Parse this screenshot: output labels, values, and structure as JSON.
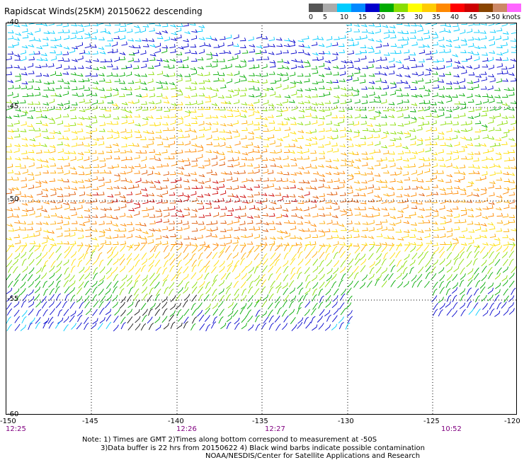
{
  "title": "Rapidscat Winds(25KM) 20150622 descending",
  "legend": {
    "colors": [
      "#555555",
      "#aaaaaa",
      "#00ccff",
      "#0088ff",
      "#0000cc",
      "#00aa00",
      "#88dd00",
      "#ffff00",
      "#ffcc00",
      "#ff8800",
      "#ff0000",
      "#cc0000",
      "#884400",
      "#cc8866",
      "#ff66ff",
      "#cc00cc",
      "#880088",
      "#330055"
    ],
    "labels": [
      "0",
      "5",
      "10",
      "15",
      "20",
      "25",
      "30",
      "35",
      "40",
      "45",
      ">50 knots"
    ]
  },
  "map": {
    "lat_labels": [
      "-40",
      "-45",
      "-50",
      "-55",
      "-60"
    ],
    "lon_labels": [
      "-150",
      "-145",
      "-140",
      "-135",
      "-130",
      "-125",
      "-120"
    ],
    "time_labels": [
      "12:25",
      "12:26",
      "12:27",
      "10:52"
    ]
  },
  "notes": [
    "Note: 1) Times are GMT 2)Times along bottom correspond to measurement at -50S",
    "3)Data buffer is 22 hrs from 20150622 4) Black wind barbs indicate possible contamination",
    "NOAA/NESDIS/Center for Satellite Applications and Research"
  ]
}
